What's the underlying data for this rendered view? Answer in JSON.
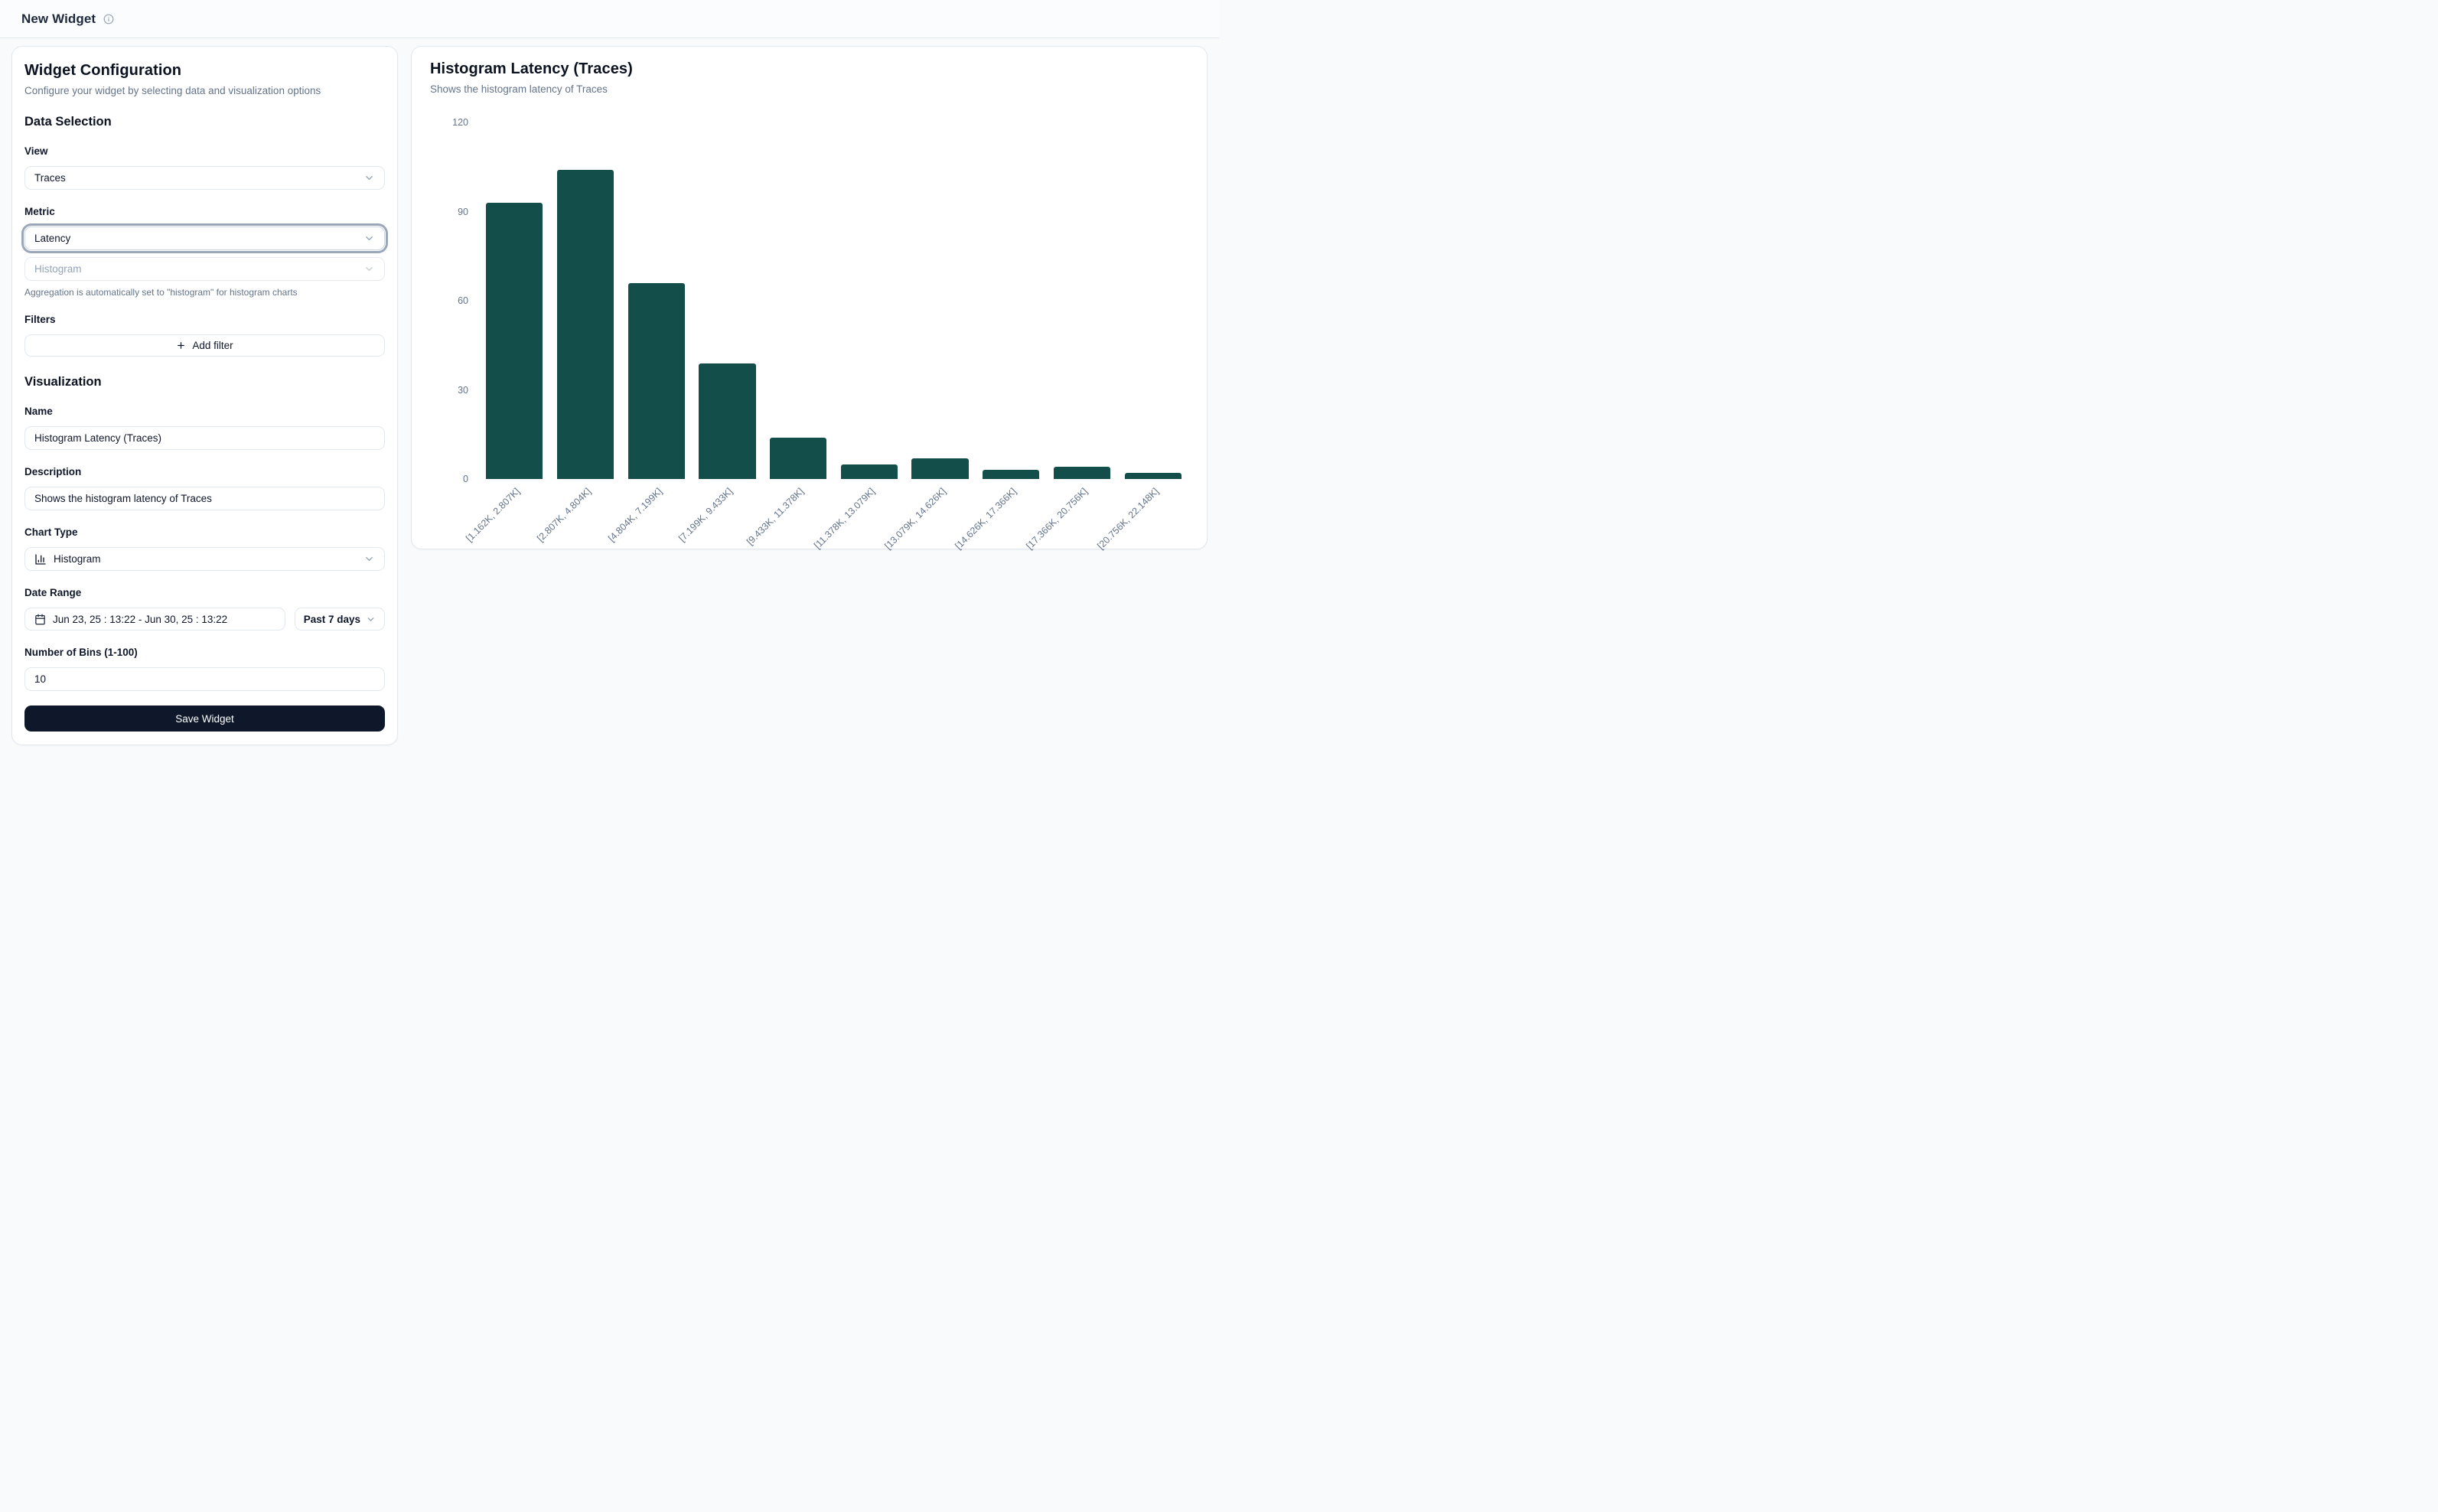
{
  "header": {
    "title": "New Widget"
  },
  "icons": {
    "info": "info-icon",
    "chevron": "chevron-down-icon",
    "plus": "plus-icon",
    "calendar": "calendar-icon",
    "chart_type": "bar-chart-icon"
  },
  "colors": {
    "bar": "#134e4a",
    "save_button": "#0f172a",
    "page_background": "#f8fafc",
    "border": "#e2e8f0",
    "muted_text": "#64748b"
  },
  "config_panel": {
    "title": "Widget Configuration",
    "subtitle": "Configure your widget by selecting data and visualization options",
    "data_selection": {
      "heading": "Data Selection",
      "view_label": "View",
      "view_value": "Traces",
      "metric_label": "Metric",
      "metric_value": "Latency",
      "aggregation_value": "Histogram",
      "aggregation_note": "Aggregation is automatically set to \"histogram\" for histogram charts",
      "filters_label": "Filters",
      "add_filter_label": "Add filter"
    },
    "visualization": {
      "heading": "Visualization",
      "name_label": "Name",
      "name_value": "Histogram Latency (Traces)",
      "description_label": "Description",
      "description_value": "Shows the histogram latency of Traces",
      "chart_type_label": "Chart Type",
      "chart_type_value": "Histogram",
      "date_range_label": "Date Range",
      "date_range_value": "Jun 23, 25 : 13:22 - Jun 30, 25 : 13:22",
      "date_preset_value": "Past 7 days",
      "bins_label": "Number of Bins (1-100)",
      "bins_value": "10"
    },
    "save_label": "Save Widget"
  },
  "chart_panel": {
    "title": "Histogram Latency (Traces)",
    "subtitle": "Shows the histogram latency of Traces"
  },
  "chart_data": {
    "type": "bar",
    "title": "Histogram Latency (Traces)",
    "categories": [
      "[1.162K, 2.807K]",
      "[2.807K, 4.804K]",
      "[4.804K, 7.199K]",
      "[7.199K, 9.433K]",
      "[9.433K, 11.378K]",
      "[11.378K, 13.079K]",
      "[13.079K, 14.626K]",
      "[14.626K, 17.366K]",
      "[17.366K, 20.756K]",
      "[20.756K, 22.148K]"
    ],
    "values": [
      93,
      104,
      66,
      39,
      14,
      5,
      7,
      3,
      4,
      2
    ],
    "xlabel": "",
    "ylabel": "",
    "ylim": [
      0,
      120
    ],
    "yticks": [
      0,
      30,
      60,
      90,
      120
    ],
    "grid": false,
    "legend": false,
    "bar_color": "#134e4a"
  }
}
